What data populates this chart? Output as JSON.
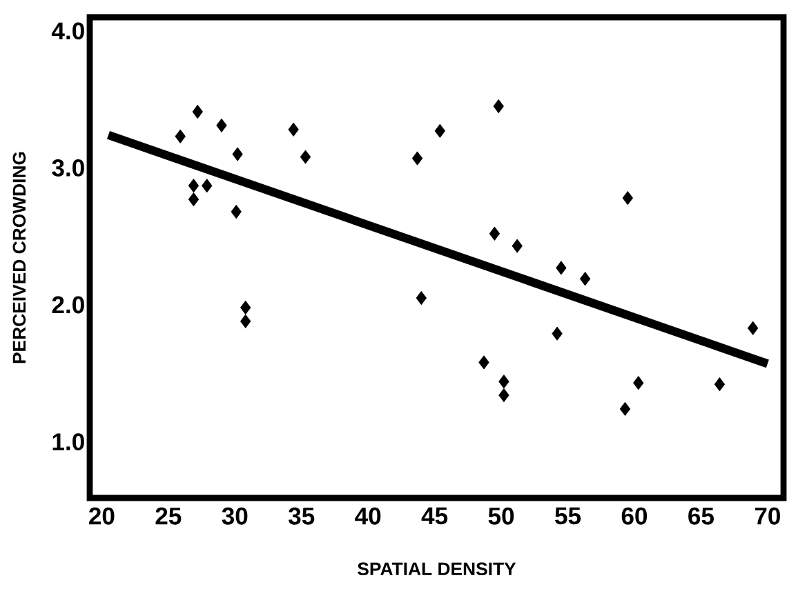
{
  "chart_data": {
    "type": "scatter",
    "xlabel": "SPATIAL DENSITY",
    "ylabel": "PERCEIVED CROWDING",
    "xlim": [
      19.1,
      71.2
    ],
    "ylim": [
      0.59,
      4.1
    ],
    "xticks": [
      20,
      25,
      30,
      35,
      40,
      45,
      50,
      55,
      60,
      65,
      70
    ],
    "yticks": [
      {
        "value": 1,
        "label": "1.0"
      },
      {
        "value": 2,
        "label": "2.0"
      },
      {
        "value": 3,
        "label": "3.0"
      },
      {
        "value": 4,
        "label": "4.0"
      }
    ],
    "grid": false,
    "series": [
      {
        "marker": "diamond",
        "color": "#000000",
        "x": [
          25.9,
          27.2,
          26.9,
          26.9,
          27.9,
          29.0,
          30.2,
          30.1,
          30.8,
          30.8,
          34.4,
          35.3,
          43.7,
          45.4,
          44.0,
          49.8,
          49.5,
          51.2,
          48.7,
          50.2,
          50.2,
          54.5,
          54.2,
          56.3,
          59.5,
          59.3,
          60.3,
          66.4,
          68.9
        ],
        "values": [
          3.23,
          3.41,
          2.87,
          2.77,
          2.87,
          3.31,
          3.1,
          2.68,
          1.98,
          1.88,
          3.28,
          3.08,
          3.07,
          3.27,
          2.05,
          3.45,
          2.52,
          2.43,
          1.58,
          1.44,
          1.34,
          2.27,
          1.79,
          2.19,
          2.78,
          1.24,
          1.43,
          1.42,
          1.83
        ]
      },
      {
        "type": "line",
        "marker": "none",
        "color": "#000000",
        "x": [
          20.5,
          70
        ],
        "values": [
          3.24,
          1.57
        ]
      }
    ]
  }
}
